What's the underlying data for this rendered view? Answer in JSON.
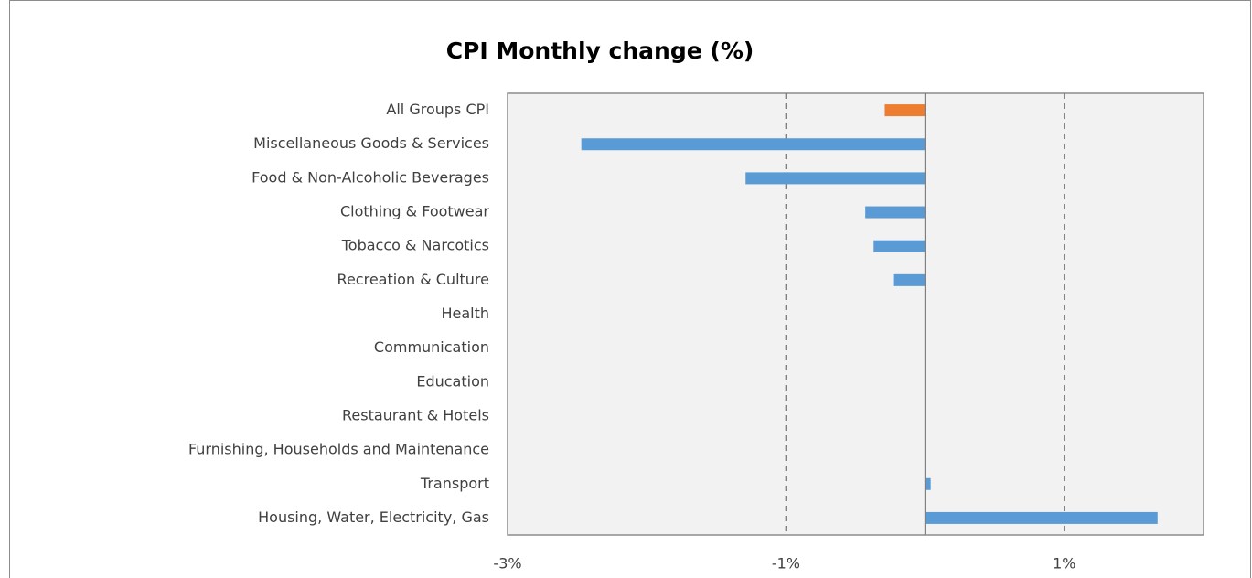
{
  "chart_data": {
    "type": "barh",
    "title": "CPI Monthly change (%)",
    "categories": [
      "All Groups CPI",
      "Miscellaneous Goods & Services",
      "Food & Non-Alcoholic Beverages",
      "Clothing & Footwear",
      "Tobacco & Narcotics",
      "Recreation & Culture",
      "Health",
      "Communication",
      "Education",
      "Restaurant & Hotels",
      "Furnishing, Households and Maintenance",
      "Transport",
      "Housing, Water, Electricity, Gas"
    ],
    "values": [
      -0.29,
      -2.47,
      -1.29,
      -0.43,
      -0.37,
      -0.23,
      0,
      0,
      0,
      0,
      0,
      0.04,
      1.67
    ],
    "colors": [
      "#ed7d31",
      "#5b9bd5",
      "#5b9bd5",
      "#5b9bd5",
      "#5b9bd5",
      "#5b9bd5",
      "#5b9bd5",
      "#5b9bd5",
      "#5b9bd5",
      "#5b9bd5",
      "#5b9bd5",
      "#5b9bd5",
      "#5b9bd5"
    ],
    "xlim": [
      -3,
      2
    ],
    "xticks": [
      {
        "value": -3,
        "label": "-3%"
      },
      {
        "value": -1,
        "label": "-1%"
      },
      {
        "value": 1,
        "label": "1%"
      }
    ],
    "grid": true
  }
}
